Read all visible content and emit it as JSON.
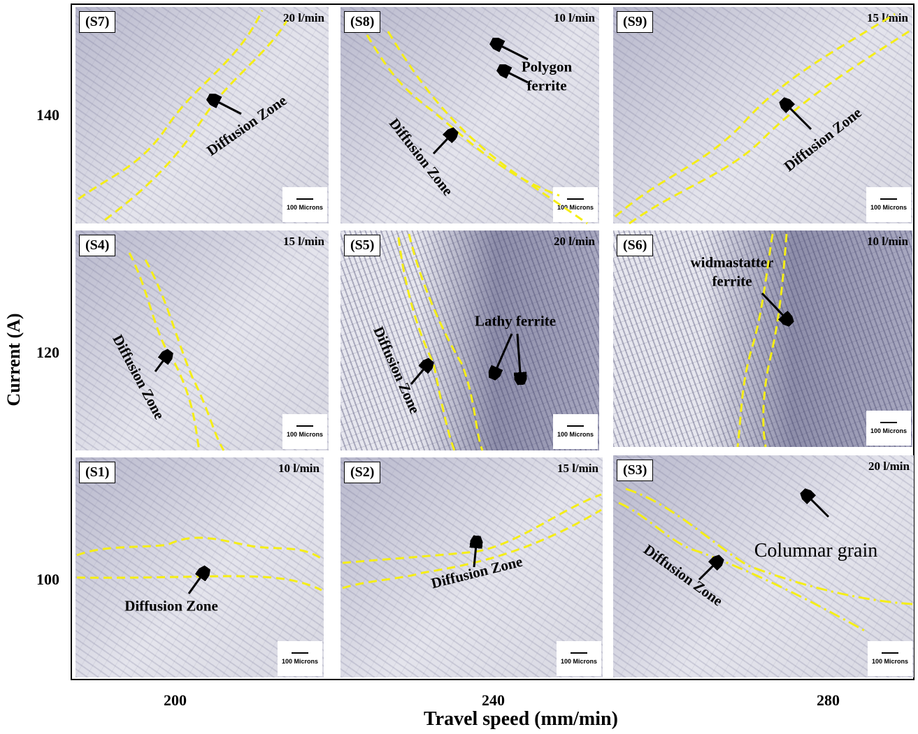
{
  "figure": {
    "y_axis": {
      "label": "Current (A)",
      "ticks": [
        "140",
        "120",
        "100"
      ]
    },
    "x_axis": {
      "label": "Travel speed (mm/min)",
      "ticks": [
        "200",
        "240",
        "280"
      ]
    },
    "panels": [
      {
        "id": "(S7)",
        "flow": "20 l/min",
        "scale": "100 Microns",
        "annotations": [
          "Diffusion Zone"
        ]
      },
      {
        "id": "(S8)",
        "flow": "10 l/min",
        "scale": "100 Microns",
        "annotations": [
          "Diffusion Zone",
          "Polygon ferrite"
        ]
      },
      {
        "id": "(S9)",
        "flow": "15 l/min",
        "scale": "100 Microns",
        "annotations": [
          "Diffusion Zone"
        ]
      },
      {
        "id": "(S4)",
        "flow": "15 l/min",
        "scale": "100 Microns",
        "annotations": [
          "Diffusion Zone"
        ]
      },
      {
        "id": "(S5)",
        "flow": "20 l/min",
        "scale": "100 Microns",
        "annotations": [
          "Diffusion Zone",
          "Lathy ferrite"
        ]
      },
      {
        "id": "(S6)",
        "flow": "10 l/min",
        "scale": "100 Microns",
        "annotations": [
          "widmastatter ferrite"
        ]
      },
      {
        "id": "(S1)",
        "flow": "10 l/min",
        "scale": "100 Microns",
        "annotations": [
          "Diffusion Zone"
        ]
      },
      {
        "id": "(S2)",
        "flow": "15 l/min",
        "scale": "100 Microns",
        "annotations": [
          "Diffusion Zone"
        ]
      },
      {
        "id": "(S3)",
        "flow": "20 l/min",
        "scale": "100 Microns",
        "annotations": [
          "Diffusion Zone",
          "Columnar grain"
        ]
      }
    ]
  }
}
